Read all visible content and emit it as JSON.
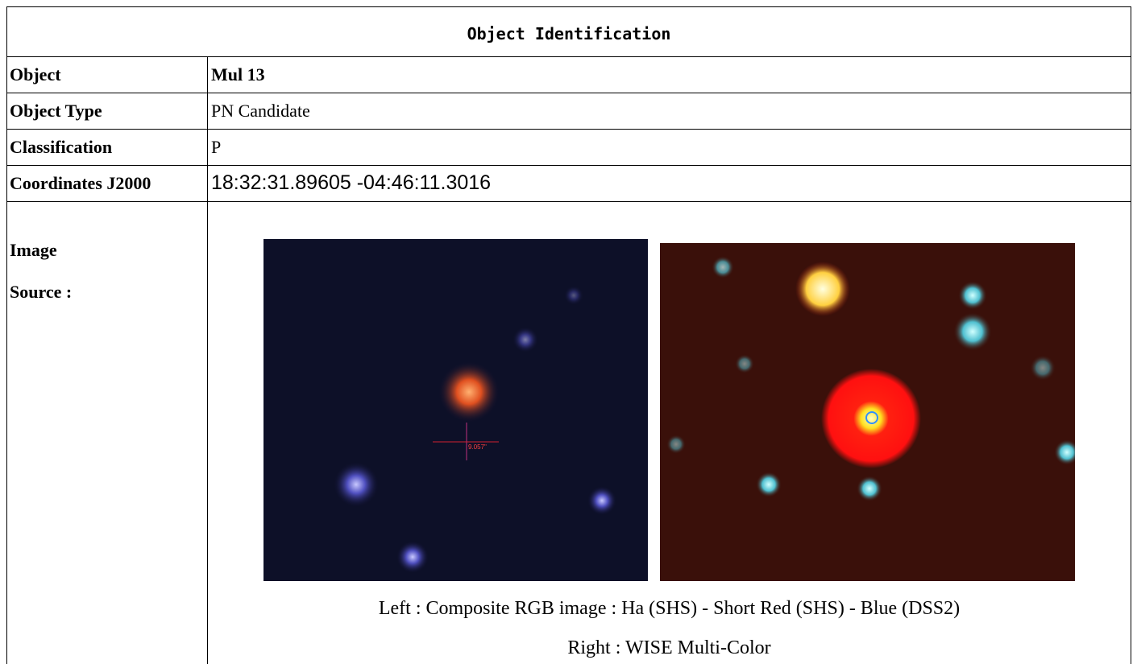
{
  "header": {
    "title": "Object Identification"
  },
  "rows": [
    {
      "label": "Object",
      "value": "Mul 13"
    },
    {
      "label": "Object Type",
      "value": "PN Candidate"
    },
    {
      "label": "Classification",
      "value": "P"
    },
    {
      "label": "Coordinates J2000",
      "value": "18:32:31.89605 -04:46:11.3016"
    }
  ],
  "image_row": {
    "label_lines": [
      "Image",
      "Source :"
    ],
    "scale_label": "9.057\"",
    "captions": [
      "Left : Composite RGB image : Ha (SHS) - Short Red (SHS) - Blue (DSS2)",
      "Right : WISE Multi-Color"
    ]
  }
}
